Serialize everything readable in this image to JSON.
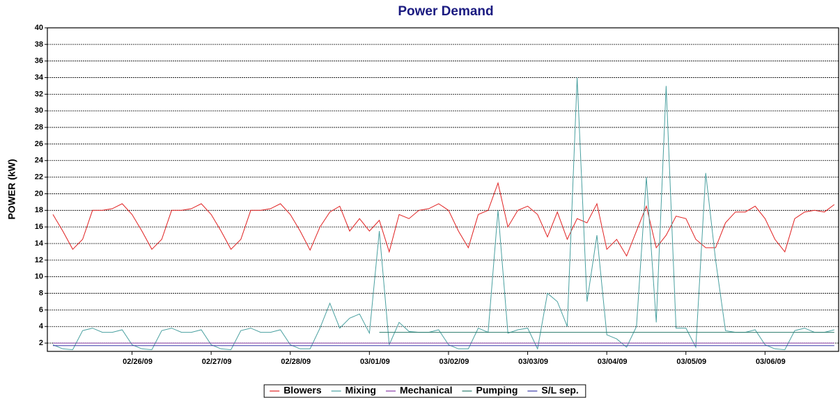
{
  "chart_data": {
    "type": "line",
    "title": "Power Demand",
    "y_label": "POWER (kW)",
    "x": [
      -1,
      -0.875,
      -0.75,
      -0.625,
      -0.5,
      -0.375,
      -0.25,
      -0.125,
      0,
      0.125,
      0.25,
      0.375,
      0.5,
      0.625,
      0.75,
      0.875,
      1,
      1.125,
      1.25,
      1.375,
      1.5,
      1.625,
      1.75,
      1.875,
      2,
      2.125,
      2.25,
      2.375,
      2.5,
      2.625,
      2.75,
      2.875,
      3,
      3.125,
      3.25,
      3.375,
      3.5,
      3.625,
      3.75,
      3.875,
      4,
      4.125,
      4.25,
      4.375,
      4.5,
      4.625,
      4.75,
      4.875,
      5,
      5.125,
      5.25,
      5.375,
      5.5,
      5.625,
      5.75,
      5.875,
      6,
      6.125,
      6.25,
      6.375,
      6.5,
      6.625,
      6.75,
      6.875,
      7,
      7.125,
      7.25,
      7.375,
      7.5,
      7.625,
      7.75,
      7.875,
      8,
      8.125,
      8.25,
      8.375,
      8.5,
      8.625,
      8.75,
      8.875
    ],
    "xlim": [
      -1.07,
      8.93
    ],
    "xticks": [
      {
        "value": 0,
        "label": "02/26/09"
      },
      {
        "value": 1,
        "label": "02/27/09"
      },
      {
        "value": 2,
        "label": "02/28/09"
      },
      {
        "value": 3,
        "label": "03/01/09"
      },
      {
        "value": 4,
        "label": "03/02/09"
      },
      {
        "value": 5,
        "label": "03/03/09"
      },
      {
        "value": 6,
        "label": "03/04/09"
      },
      {
        "value": 7,
        "label": "03/05/09"
      },
      {
        "value": 8,
        "label": "03/06/09"
      }
    ],
    "ylim": [
      1,
      40
    ],
    "yticks": [
      2,
      4,
      6,
      8,
      10,
      12,
      14,
      16,
      18,
      20,
      22,
      24,
      26,
      28,
      30,
      32,
      34,
      36,
      38,
      40
    ],
    "grid": true,
    "legend": "bottom",
    "series": [
      {
        "name": "Blowers",
        "color": "#e02020",
        "values": [
          17.5,
          15.5,
          13.3,
          14.5,
          18,
          18,
          18.2,
          18.8,
          17.5,
          15.5,
          13.3,
          14.5,
          18,
          18,
          18.2,
          18.8,
          17.5,
          15.5,
          13.3,
          14.5,
          18,
          18,
          18.2,
          18.8,
          17.5,
          15.5,
          13.2,
          16,
          17.8,
          18.5,
          15.5,
          17,
          15.5,
          16.8,
          13,
          17.5,
          17,
          18,
          18.2,
          18.8,
          18,
          15.5,
          13.5,
          17.5,
          18,
          21.3,
          16,
          18,
          18.5,
          17.5,
          14.8,
          17.8,
          14.5,
          17,
          16.5,
          18.8,
          13.3,
          14.5,
          12.5,
          15.5,
          18.5,
          13.5,
          15,
          17.3,
          17,
          14.5,
          13.5,
          13.5,
          16.5,
          17.8,
          17.8,
          18.5,
          17,
          14.5,
          13,
          17,
          17.8,
          18,
          17.8,
          18.7
        ]
      },
      {
        "name": "Mixing",
        "color": "#4aa0a0",
        "values": [
          1.8,
          1.3,
          1.2,
          3.5,
          3.8,
          3.3,
          3.3,
          3.6,
          1.8,
          1.3,
          1.2,
          3.5,
          3.8,
          3.3,
          3.3,
          3.6,
          1.8,
          1.3,
          1.2,
          3.5,
          3.8,
          3.3,
          3.3,
          3.6,
          1.8,
          1.3,
          1.3,
          3.8,
          6.8,
          3.8,
          5,
          5.5,
          3.2,
          15.5,
          1.8,
          4.5,
          3.4,
          3.3,
          3.3,
          3.6,
          1.8,
          1.3,
          1.3,
          3.8,
          3.3,
          18,
          3.2,
          3.6,
          3.8,
          1.3,
          8,
          7,
          4,
          34,
          7,
          15,
          3,
          2.5,
          1.5,
          4,
          22,
          4.5,
          33,
          3.8,
          3.8,
          1.5,
          22.5,
          12,
          3.5,
          3.3,
          3.3,
          3.6,
          1.8,
          1.3,
          1.2,
          3.5,
          3.8,
          3.3,
          3.3,
          3.6
        ]
      },
      {
        "name": "Mechanical",
        "color": "#8a3ca8",
        "values": [
          2,
          2,
          2,
          2,
          2,
          2,
          2,
          2,
          2,
          2,
          2,
          2,
          2,
          2,
          2,
          2,
          2,
          2,
          2,
          2,
          2,
          2,
          2,
          2,
          2,
          2,
          2,
          2,
          2,
          2,
          2,
          2,
          2,
          2,
          2,
          2,
          2,
          2,
          2,
          2,
          2,
          2,
          2,
          2,
          2,
          2,
          2,
          2,
          2,
          2,
          2,
          2,
          2,
          2,
          2,
          2,
          2,
          2,
          2,
          2,
          2,
          2,
          2,
          2,
          2,
          2,
          2,
          2,
          2,
          2,
          2,
          2,
          2,
          2,
          2,
          2,
          2,
          2,
          2,
          2
        ]
      },
      {
        "name": "Pumping",
        "color": "#2a7a6a",
        "values": [
          null,
          null,
          null,
          null,
          null,
          null,
          null,
          null,
          null,
          null,
          null,
          null,
          null,
          null,
          null,
          null,
          null,
          null,
          null,
          null,
          null,
          null,
          null,
          null,
          null,
          null,
          null,
          null,
          null,
          null,
          null,
          null,
          null,
          3.3,
          3.3,
          3.3,
          3.3,
          3.3,
          3.3,
          3.3,
          3.3,
          3.3,
          3.3,
          3.3,
          3.3,
          3.3,
          3.3,
          3.3,
          3.3,
          3.3,
          3.3,
          3.3,
          3.3,
          3.3,
          3.3,
          3.3,
          3.3,
          3.3,
          3.3,
          3.3,
          3.3,
          3.3,
          3.3,
          3.3,
          3.3,
          3.3,
          3.3,
          3.3,
          3.3,
          3.3,
          3.3,
          3.3,
          3.3,
          3.3,
          3.3,
          3.3,
          3.3,
          3.3,
          3.3,
          3.3
        ]
      },
      {
        "name": "S/L sep.",
        "color": "#3a3aa8",
        "values": [
          1.7,
          1.7,
          1.7,
          1.7,
          1.7,
          1.7,
          1.7,
          1.7,
          1.7,
          1.7,
          1.7,
          1.7,
          1.7,
          1.7,
          1.7,
          1.7,
          1.7,
          1.7,
          1.7,
          1.7,
          1.7,
          1.7,
          1.7,
          1.7,
          1.7,
          1.7,
          1.7,
          1.7,
          1.7,
          1.7,
          1.7,
          1.7,
          1.7,
          1.7,
          1.7,
          1.7,
          1.7,
          1.7,
          1.7,
          1.7,
          1.7,
          1.7,
          1.7,
          1.7,
          1.7,
          1.7,
          1.7,
          1.7,
          1.7,
          1.7,
          1.7,
          1.7,
          1.7,
          1.7,
          1.7,
          1.7,
          1.7,
          1.7,
          1.7,
          1.7,
          1.7,
          1.7,
          1.7,
          1.7,
          1.7,
          1.7,
          1.7,
          1.7,
          1.7,
          1.7,
          1.7,
          1.7,
          1.7,
          1.7,
          1.7,
          1.7,
          1.7,
          1.7,
          1.7,
          1.7
        ]
      }
    ]
  }
}
